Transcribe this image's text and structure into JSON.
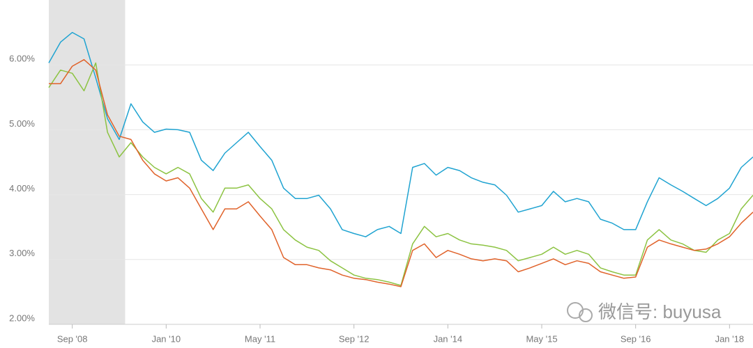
{
  "chart_data": {
    "type": "line",
    "annotation": "微信号: buyusa",
    "x": [
      "2008-05",
      "2008-07",
      "2008-09",
      "2008-11",
      "2009-01",
      "2009-03",
      "2009-05",
      "2009-07",
      "2009-09",
      "2009-11",
      "2010-01",
      "2010-03",
      "2010-05",
      "2010-07",
      "2010-09",
      "2010-11",
      "2011-01",
      "2011-03",
      "2011-05",
      "2011-07",
      "2011-09",
      "2011-11",
      "2012-01",
      "2012-03",
      "2012-05",
      "2012-07",
      "2012-09",
      "2012-11",
      "2013-01",
      "2013-03",
      "2013-05",
      "2013-07",
      "2013-09",
      "2013-11",
      "2014-01",
      "2014-03",
      "2014-05",
      "2014-07",
      "2014-09",
      "2014-11",
      "2015-01",
      "2015-03",
      "2015-05",
      "2015-07",
      "2015-09",
      "2015-11",
      "2016-01",
      "2016-03",
      "2016-05",
      "2016-07",
      "2016-09",
      "2016-11",
      "2017-01",
      "2017-03",
      "2017-05",
      "2017-07",
      "2017-09",
      "2017-11",
      "2018-01",
      "2018-03",
      "2018-05"
    ],
    "series": [
      {
        "color": "#1fa3d1",
        "values": [
          6.03,
          6.35,
          6.5,
          6.4,
          5.8,
          5.17,
          4.85,
          5.4,
          5.12,
          4.96,
          5.01,
          5.0,
          4.96,
          4.53,
          4.37,
          4.64,
          4.8,
          4.96,
          4.74,
          4.53,
          4.1,
          3.94,
          3.94,
          3.99,
          3.78,
          3.46,
          3.4,
          3.35,
          3.46,
          3.51,
          3.4,
          4.42,
          4.48,
          4.3,
          4.42,
          4.37,
          4.26,
          4.19,
          4.15,
          3.99,
          3.73,
          3.78,
          3.83,
          4.05,
          3.89,
          3.94,
          3.89,
          3.62,
          3.56,
          3.46,
          3.46,
          3.89,
          4.26,
          4.15,
          4.05,
          3.94,
          3.83,
          3.94,
          4.1,
          4.42,
          4.58
        ]
      },
      {
        "color": "#8cc342",
        "values": [
          5.65,
          5.92,
          5.87,
          5.6,
          6.03,
          4.96,
          4.58,
          4.8,
          4.58,
          4.42,
          4.32,
          4.42,
          4.32,
          3.94,
          3.73,
          4.1,
          4.1,
          4.15,
          3.94,
          3.78,
          3.46,
          3.3,
          3.19,
          3.14,
          2.98,
          2.87,
          2.76,
          2.71,
          2.69,
          2.65,
          2.6,
          3.24,
          3.51,
          3.35,
          3.4,
          3.3,
          3.24,
          3.22,
          3.19,
          3.14,
          2.98,
          3.03,
          3.08,
          3.19,
          3.08,
          3.14,
          3.08,
          2.87,
          2.81,
          2.76,
          2.76,
          3.3,
          3.46,
          3.3,
          3.24,
          3.14,
          3.11,
          3.3,
          3.4,
          3.78,
          3.99
        ]
      },
      {
        "color": "#e0622a",
        "values": [
          5.71,
          5.71,
          5.98,
          6.08,
          5.92,
          5.23,
          4.9,
          4.85,
          4.53,
          4.32,
          4.21,
          4.26,
          4.1,
          3.78,
          3.46,
          3.78,
          3.78,
          3.89,
          3.67,
          3.46,
          3.03,
          2.92,
          2.92,
          2.87,
          2.84,
          2.76,
          2.71,
          2.69,
          2.65,
          2.62,
          2.58,
          3.14,
          3.24,
          3.03,
          3.14,
          3.08,
          3.01,
          2.98,
          3.01,
          2.98,
          2.81,
          2.87,
          2.94,
          3.01,
          2.92,
          2.98,
          2.94,
          2.81,
          2.76,
          2.71,
          2.73,
          3.19,
          3.3,
          3.24,
          3.19,
          3.14,
          3.16,
          3.24,
          3.35,
          3.56,
          3.73
        ]
      }
    ],
    "xlim": [
      "2008-05",
      "2018-05"
    ],
    "xticks": [
      {
        "value": "2008-09",
        "label": "Sep '08"
      },
      {
        "value": "2010-01",
        "label": "Jan '10"
      },
      {
        "value": "2011-05",
        "label": "May '11"
      },
      {
        "value": "2012-09",
        "label": "Sep '12"
      },
      {
        "value": "2014-01",
        "label": "Jan '14"
      },
      {
        "value": "2015-05",
        "label": "May '15"
      },
      {
        "value": "2016-09",
        "label": "Sep '16"
      },
      {
        "value": "2018-01",
        "label": "Jan '18"
      }
    ],
    "ylim": [
      2,
      7
    ],
    "yticks": [
      {
        "value": 2,
        "label": "2.00%"
      },
      {
        "value": 3,
        "label": "3.00%"
      },
      {
        "value": 4,
        "label": "4.00%"
      },
      {
        "value": 5,
        "label": "5.00%"
      },
      {
        "value": 6,
        "label": "6.00%"
      }
    ],
    "shaded_region": [
      "2008-05",
      "2009-06"
    ],
    "grid": true
  }
}
